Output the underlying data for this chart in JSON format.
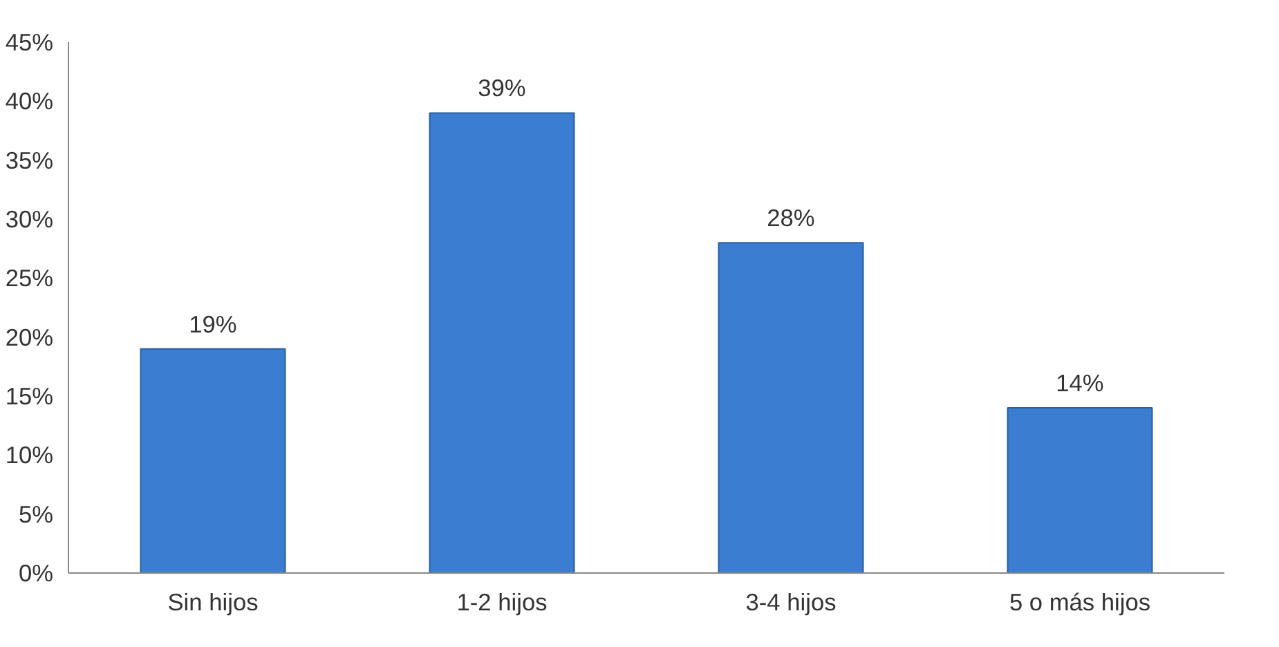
{
  "chart_data": {
    "type": "bar",
    "categories": [
      "Sin hijos",
      "1-2 hijos",
      "3-4 hijos",
      "5 o más hijos"
    ],
    "values": [
      19,
      39,
      28,
      14
    ],
    "value_labels": [
      "19%",
      "39%",
      "28%",
      "14%"
    ],
    "color": "#3b7dd0",
    "ylim": [
      0,
      45
    ],
    "yticks": [
      {
        "value": 0,
        "label": "0%"
      },
      {
        "value": 5,
        "label": "5%"
      },
      {
        "value": 10,
        "label": "10%"
      },
      {
        "value": 15,
        "label": "15%"
      },
      {
        "value": 20,
        "label": "20%"
      },
      {
        "value": 25,
        "label": "25%"
      },
      {
        "value": 30,
        "label": "30%"
      },
      {
        "value": 35,
        "label": "35%"
      },
      {
        "value": 40,
        "label": "40%"
      },
      {
        "value": 45,
        "label": "45%"
      }
    ],
    "grid": false
  }
}
